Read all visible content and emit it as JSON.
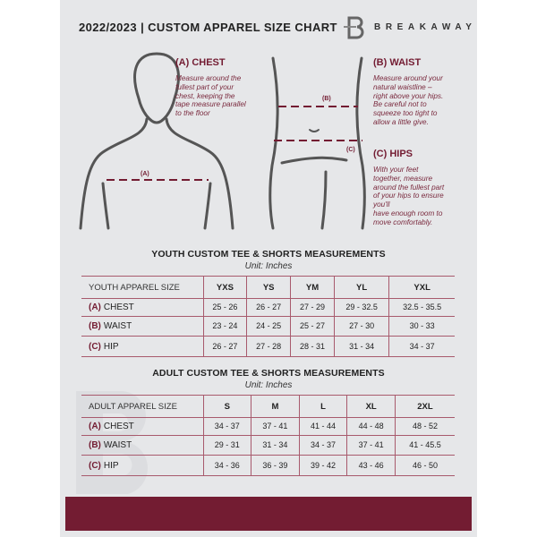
{
  "header": {
    "title": "2022/2023  |  CUSTOM APPAREL SIZE CHART",
    "brand": "BREAKAWAY",
    "logo_letter": "B"
  },
  "measures": {
    "chest": {
      "label": "(A) CHEST",
      "marker": "(A)",
      "desc": [
        "Measure around the",
        "fullest part of your",
        "chest, keeping the",
        "tape measure parallel",
        "to the floor"
      ]
    },
    "waist": {
      "label": "(B) WAIST",
      "marker": "(B)",
      "desc": [
        "Measure around your",
        "natural waistline –",
        "right above your hips.",
        "Be careful not to",
        "squeeze too tight to",
        "allow a little give."
      ]
    },
    "hips": {
      "label": "(C) HIPS",
      "marker": "(C)",
      "desc": [
        "With your feet",
        "together, measure",
        "around the fullest part",
        "of your hips to ensure",
        "you'll",
        "have enough room to",
        "move comfortably."
      ]
    }
  },
  "youth": {
    "title": "YOUTH CUSTOM TEE & SHORTS MEASUREMENTS",
    "unit": "Unit: Inches",
    "header": "YOUTH APPAREL SIZE",
    "sizes": [
      "YXS",
      "YS",
      "YM",
      "YL",
      "YXL"
    ],
    "rows": [
      {
        "letter": "(A)",
        "name": "CHEST",
        "values": [
          "25 - 26",
          "26 - 27",
          "27 - 29",
          "29 - 32.5",
          "32.5 - 35.5"
        ]
      },
      {
        "letter": "(B)",
        "name": "WAIST",
        "values": [
          "23 - 24",
          "24 - 25",
          "25 - 27",
          "27 - 30",
          "30 - 33"
        ]
      },
      {
        "letter": "(C)",
        "name": "HIP",
        "values": [
          "26 - 27",
          "27 - 28",
          "28 - 31",
          "31 - 34",
          "34 - 37"
        ]
      }
    ]
  },
  "adult": {
    "title": "ADULT CUSTOM TEE & SHORTS MEASUREMENTS",
    "unit": "Unit: Inches",
    "header": "ADULT APPAREL SIZE",
    "sizes": [
      "S",
      "M",
      "L",
      "XL",
      "2XL"
    ],
    "rows": [
      {
        "letter": "(A)",
        "name": "CHEST",
        "values": [
          "34 - 37",
          "37 - 41",
          "41 - 44",
          "44 - 48",
          "48 - 52"
        ]
      },
      {
        "letter": "(B)",
        "name": "WAIST",
        "values": [
          "29 - 31",
          "31 - 34",
          "34 - 37",
          "37 - 41",
          "41 - 45.5"
        ]
      },
      {
        "letter": "(C)",
        "name": "HIP",
        "values": [
          "34 - 36",
          "36 - 39",
          "39 - 42",
          "43 - 46",
          "46 - 50"
        ]
      }
    ]
  },
  "colors": {
    "accent": "#731c32",
    "page": "#e6e7e9",
    "outline": "#555555"
  }
}
